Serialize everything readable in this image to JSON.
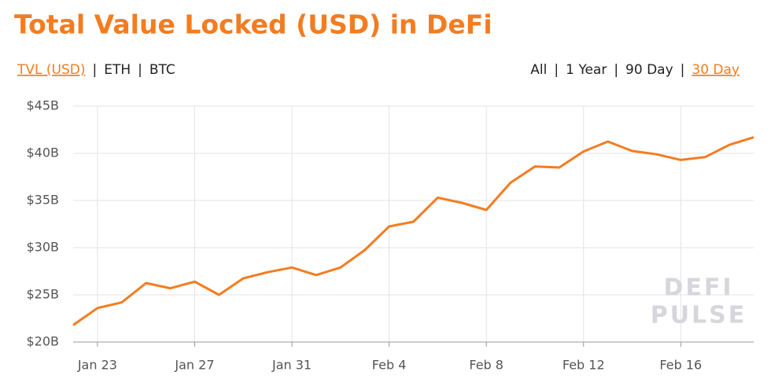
{
  "chart_data": {
    "type": "line",
    "title": "Total Value Locked (USD) in DeFi",
    "currency_tabs": [
      "TVL (USD)",
      "ETH",
      "BTC"
    ],
    "active_currency": 0,
    "range_tabs": [
      "All",
      "1 Year",
      "90 Day",
      "30 Day"
    ],
    "active_range": 3,
    "separator": "|",
    "watermark": [
      "DEFI",
      "PULSE"
    ],
    "categories": [
      null,
      "Jan 23",
      null,
      null,
      null,
      "Jan 27",
      null,
      null,
      null,
      "Jan 31",
      null,
      null,
      null,
      "Feb 4",
      null,
      null,
      null,
      "Feb 8",
      null,
      null,
      null,
      "Feb 12",
      null,
      null,
      null,
      "Feb 16",
      null,
      null,
      null
    ],
    "series": [
      {
        "color": "#f47c20",
        "values": [
          21.8,
          23.6,
          24.2,
          26.25,
          25.7,
          26.4,
          25.0,
          26.75,
          27.4,
          27.9,
          27.1,
          27.9,
          29.75,
          32.25,
          32.75,
          35.3,
          34.75,
          34.0,
          36.9,
          38.6,
          38.5,
          40.2,
          41.25,
          40.25,
          39.9,
          39.3,
          39.6,
          40.9,
          41.7
        ]
      }
    ],
    "ylim": [
      20,
      45
    ],
    "yticks": [
      {
        "value": 20,
        "label": "$20B"
      },
      {
        "value": 25,
        "label": "$25B"
      },
      {
        "value": 30,
        "label": "$30B"
      },
      {
        "value": 35,
        "label": "$35B"
      },
      {
        "value": 40,
        "label": "$40B"
      },
      {
        "value": 45,
        "label": "$45B"
      }
    ],
    "grid": true
  }
}
